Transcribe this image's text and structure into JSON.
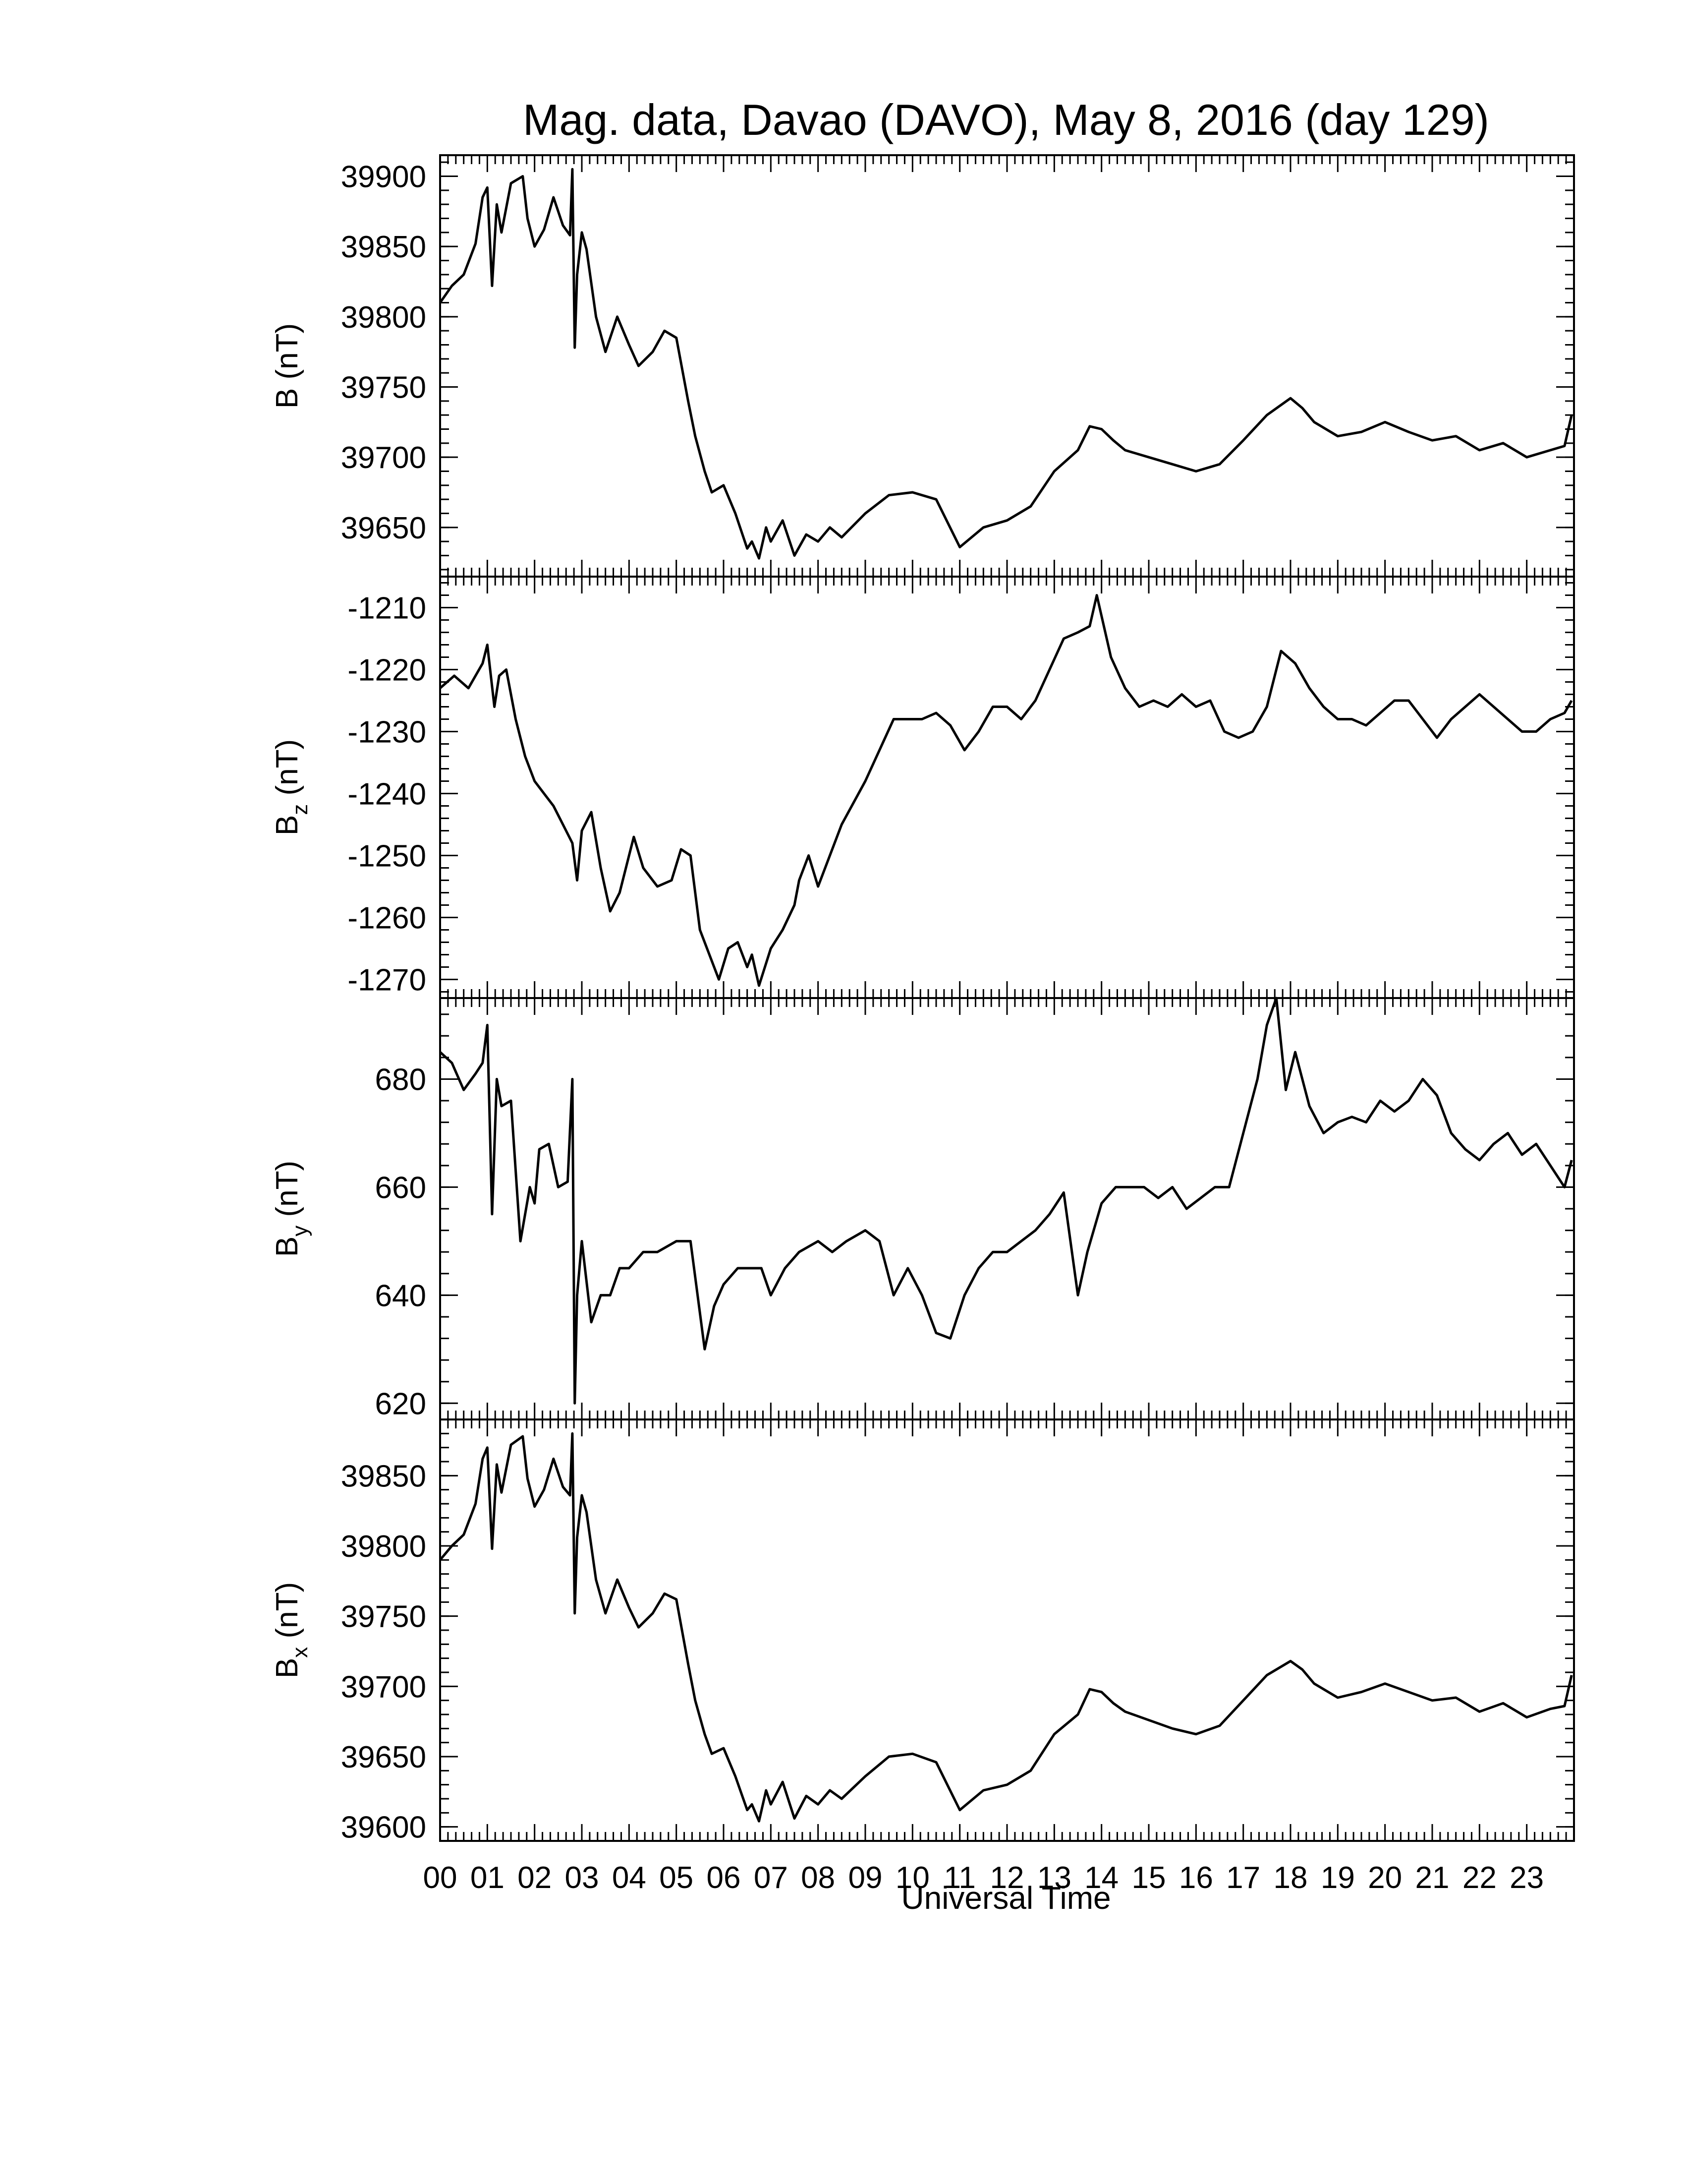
{
  "title": "Mag. data, Davao (DAVO), May 8, 2016 (day 129)",
  "xlabel": "Universal Time",
  "chart_data": [
    {
      "type": "line",
      "title": "Mag. data, Davao (DAVO), May 8, 2016 (day 129)",
      "ylabel_main": "B",
      "ylabel_sub": "",
      "ylabel_unit": " (nT)",
      "ylim": [
        39615,
        39915
      ],
      "yticks": [
        39650,
        39700,
        39750,
        39800,
        39850,
        39900
      ],
      "x": [
        0,
        0.25,
        0.5,
        0.75,
        0.9,
        1.0,
        1.1,
        1.2,
        1.3,
        1.5,
        1.75,
        1.85,
        2.0,
        2.2,
        2.4,
        2.6,
        2.75,
        2.8,
        2.85,
        2.9,
        3.0,
        3.1,
        3.3,
        3.5,
        3.75,
        4.0,
        4.2,
        4.5,
        4.75,
        5.0,
        5.25,
        5.4,
        5.6,
        5.75,
        6.0,
        6.25,
        6.5,
        6.6,
        6.75,
        6.9,
        7.0,
        7.25,
        7.5,
        7.75,
        8.0,
        8.25,
        8.5,
        9.0,
        9.5,
        10.0,
        10.5,
        11.0,
        11.5,
        12.0,
        12.5,
        13.0,
        13.5,
        13.75,
        14.0,
        14.25,
        14.5,
        15.0,
        15.5,
        16.0,
        16.5,
        17.0,
        17.5,
        18.0,
        18.25,
        18.5,
        19.0,
        19.5,
        20.0,
        20.5,
        21.0,
        21.5,
        22.0,
        22.5,
        23.0,
        23.5,
        23.8,
        23.95
      ],
      "values": [
        39810,
        39822,
        39830,
        39852,
        39885,
        39892,
        39822,
        39880,
        39860,
        39895,
        39900,
        39870,
        39850,
        39862,
        39885,
        39865,
        39858,
        39905,
        39778,
        39830,
        39860,
        39848,
        39800,
        39775,
        39800,
        39780,
        39765,
        39775,
        39790,
        39785,
        39740,
        39715,
        39690,
        39675,
        39680,
        39660,
        39635,
        39640,
        39628,
        39650,
        39640,
        39655,
        39630,
        39645,
        39640,
        39650,
        39643,
        39660,
        39673,
        39675,
        39670,
        39636,
        39650,
        39655,
        39665,
        39690,
        39705,
        39722,
        39720,
        39712,
        39705,
        39700,
        39695,
        39690,
        39695,
        39712,
        39730,
        39742,
        39735,
        39725,
        39715,
        39718,
        39725,
        39718,
        39712,
        39715,
        39705,
        39710,
        39700,
        39705,
        39708,
        39730
      ]
    },
    {
      "type": "line",
      "ylabel_main": "B",
      "ylabel_sub": "z",
      "ylabel_unit": " (nT)",
      "ylim": [
        -1273,
        -1205
      ],
      "yticks": [
        -1270,
        -1260,
        -1250,
        -1240,
        -1230,
        -1220,
        -1210
      ],
      "x": [
        0,
        0.3,
        0.6,
        0.9,
        1.0,
        1.15,
        1.25,
        1.4,
        1.6,
        1.8,
        2.0,
        2.2,
        2.4,
        2.6,
        2.8,
        2.9,
        3.0,
        3.2,
        3.4,
        3.6,
        3.8,
        4.0,
        4.1,
        4.3,
        4.6,
        4.9,
        5.1,
        5.3,
        5.5,
        5.7,
        5.9,
        6.1,
        6.3,
        6.5,
        6.6,
        6.75,
        7.0,
        7.25,
        7.5,
        7.6,
        7.8,
        8.0,
        8.5,
        9.0,
        9.3,
        9.6,
        9.9,
        10.2,
        10.5,
        10.8,
        11.1,
        11.4,
        11.7,
        12.0,
        12.3,
        12.6,
        12.9,
        13.2,
        13.5,
        13.75,
        13.9,
        14.2,
        14.5,
        14.8,
        15.1,
        15.4,
        15.7,
        16.0,
        16.3,
        16.6,
        16.9,
        17.2,
        17.5,
        17.8,
        18.1,
        18.4,
        18.7,
        19.0,
        19.3,
        19.6,
        19.9,
        20.2,
        20.5,
        20.8,
        21.1,
        21.4,
        21.7,
        22.0,
        22.3,
        22.6,
        22.9,
        23.2,
        23.5,
        23.8,
        23.95
      ],
      "values": [
        -1223,
        -1221,
        -1223,
        -1219,
        -1216,
        -1226,
        -1221,
        -1220,
        -1228,
        -1234,
        -1238,
        -1240,
        -1242,
        -1245,
        -1248,
        -1254,
        -1246,
        -1243,
        -1252,
        -1259,
        -1256,
        -1250,
        -1247,
        -1252,
        -1255,
        -1254,
        -1249,
        -1250,
        -1262,
        -1266,
        -1270,
        -1265,
        -1264,
        -1268,
        -1266,
        -1271,
        -1265,
        -1262,
        -1258,
        -1254,
        -1250,
        -1255,
        -1245,
        -1238,
        -1233,
        -1228,
        -1228,
        -1228,
        -1227,
        -1229,
        -1233,
        -1230,
        -1226,
        -1226,
        -1228,
        -1225,
        -1220,
        -1215,
        -1214,
        -1213,
        -1208,
        -1218,
        -1223,
        -1226,
        -1225,
        -1226,
        -1224,
        -1226,
        -1225,
        -1230,
        -1231,
        -1230,
        -1226,
        -1217,
        -1219,
        -1223,
        -1226,
        -1228,
        -1228,
        -1229,
        -1227,
        -1225,
        -1225,
        -1228,
        -1231,
        -1228,
        -1226,
        -1224,
        -1226,
        -1228,
        -1230,
        -1230,
        -1228,
        -1227,
        -1225
      ]
    },
    {
      "type": "line",
      "ylabel_main": "B",
      "ylabel_sub": "y",
      "ylabel_unit": " (nT)",
      "ylim": [
        617,
        695
      ],
      "yticks": [
        620,
        640,
        660,
        680
      ],
      "x": [
        0,
        0.25,
        0.5,
        0.75,
        0.9,
        1.0,
        1.1,
        1.2,
        1.3,
        1.5,
        1.7,
        1.9,
        2.0,
        2.1,
        2.3,
        2.5,
        2.7,
        2.8,
        2.85,
        2.9,
        3.0,
        3.2,
        3.4,
        3.6,
        3.8,
        4.0,
        4.3,
        4.6,
        5.0,
        5.3,
        5.6,
        5.8,
        6.0,
        6.3,
        6.5,
        6.8,
        7.0,
        7.3,
        7.6,
        8.0,
        8.3,
        8.6,
        9.0,
        9.3,
        9.6,
        9.9,
        10.2,
        10.5,
        10.8,
        11.1,
        11.4,
        11.7,
        12.0,
        12.3,
        12.6,
        12.9,
        13.2,
        13.5,
        13.7,
        14.0,
        14.3,
        14.6,
        14.9,
        15.2,
        15.5,
        15.8,
        16.1,
        16.4,
        16.7,
        17.0,
        17.3,
        17.5,
        17.7,
        17.9,
        18.1,
        18.4,
        18.7,
        19.0,
        19.3,
        19.6,
        19.9,
        20.2,
        20.5,
        20.8,
        21.1,
        21.4,
        21.7,
        22.0,
        22.3,
        22.6,
        22.9,
        23.2,
        23.5,
        23.8,
        23.95
      ],
      "values": [
        685,
        683,
        678,
        681,
        683,
        690,
        655,
        680,
        675,
        676,
        650,
        660,
        657,
        667,
        668,
        660,
        661,
        680,
        620,
        640,
        650,
        635,
        640,
        640,
        645,
        645,
        648,
        648,
        650,
        650,
        630,
        638,
        642,
        645,
        645,
        645,
        640,
        645,
        648,
        650,
        648,
        650,
        652,
        650,
        640,
        645,
        640,
        633,
        632,
        640,
        645,
        648,
        648,
        650,
        652,
        655,
        659,
        640,
        648,
        657,
        660,
        660,
        660,
        658,
        660,
        656,
        658,
        660,
        660,
        670,
        680,
        690,
        695,
        678,
        685,
        675,
        670,
        672,
        673,
        672,
        676,
        674,
        676,
        680,
        677,
        670,
        667,
        665,
        668,
        670,
        666,
        668,
        664,
        660,
        665
      ]
    },
    {
      "type": "line",
      "ylabel_main": "B",
      "ylabel_sub": "x",
      "ylabel_unit": " (nT)",
      "ylim": [
        39590,
        39890
      ],
      "yticks": [
        39600,
        39650,
        39700,
        39750,
        39800,
        39850
      ],
      "x": [
        0,
        0.25,
        0.5,
        0.75,
        0.9,
        1.0,
        1.1,
        1.2,
        1.3,
        1.5,
        1.75,
        1.85,
        2.0,
        2.2,
        2.4,
        2.6,
        2.75,
        2.8,
        2.85,
        2.9,
        3.0,
        3.1,
        3.3,
        3.5,
        3.75,
        4.0,
        4.2,
        4.5,
        4.75,
        5.0,
        5.25,
        5.4,
        5.6,
        5.75,
        6.0,
        6.25,
        6.5,
        6.6,
        6.75,
        6.9,
        7.0,
        7.25,
        7.5,
        7.75,
        8.0,
        8.25,
        8.5,
        9.0,
        9.5,
        10.0,
        10.5,
        11.0,
        11.5,
        12.0,
        12.5,
        13.0,
        13.5,
        13.75,
        14.0,
        14.25,
        14.5,
        15.0,
        15.5,
        16.0,
        16.5,
        17.0,
        17.5,
        18.0,
        18.25,
        18.5,
        19.0,
        19.5,
        20.0,
        20.5,
        21.0,
        21.5,
        22.0,
        22.5,
        23.0,
        23.5,
        23.8,
        23.95
      ],
      "values": [
        39790,
        39800,
        39808,
        39830,
        39862,
        39870,
        39798,
        39858,
        39838,
        39872,
        39878,
        39848,
        39828,
        39840,
        39862,
        39842,
        39836,
        39880,
        39752,
        39806,
        39836,
        39824,
        39776,
        39752,
        39776,
        39756,
        39742,
        39752,
        39766,
        39762,
        39716,
        39690,
        39666,
        39652,
        39656,
        39636,
        39612,
        39616,
        39604,
        39626,
        39616,
        39632,
        39606,
        39622,
        39616,
        39626,
        39620,
        39636,
        39650,
        39652,
        39646,
        39612,
        39626,
        39630,
        39640,
        39666,
        39680,
        39698,
        39696,
        39688,
        39682,
        39676,
        39670,
        39666,
        39672,
        39690,
        39708,
        39718,
        39712,
        39702,
        39692,
        39696,
        39702,
        39696,
        39690,
        39692,
        39682,
        39688,
        39678,
        39684,
        39686,
        39708
      ]
    }
  ],
  "xaxis": {
    "range": [
      0,
      24
    ],
    "tick_labels": [
      "00",
      "01",
      "02",
      "03",
      "04",
      "05",
      "06",
      "07",
      "08",
      "09",
      "10",
      "11",
      "12",
      "13",
      "14",
      "15",
      "16",
      "17",
      "18",
      "19",
      "20",
      "21",
      "22",
      "23"
    ]
  }
}
